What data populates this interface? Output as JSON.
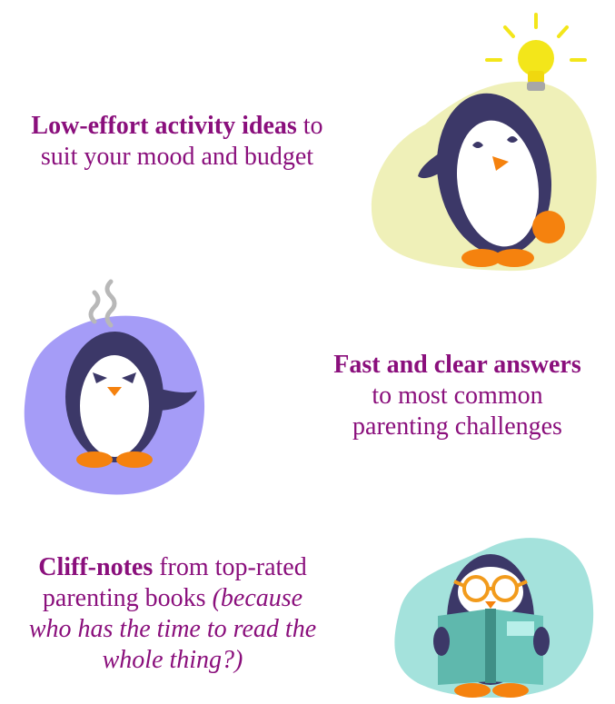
{
  "features": [
    {
      "bold": "Low-effort activity ideas",
      "line1_rest": " to",
      "line2": "suit your mood and budget",
      "illustration": "penguin-with-lightbulb-icon",
      "blob_color": "#eff0b8"
    },
    {
      "bold": "Fast and clear answers",
      "line2": "to most common",
      "line3": "parenting challenges",
      "illustration": "steaming-penguin-icon",
      "blob_color": "#a59cf7"
    },
    {
      "bold": "Cliff-notes",
      "line1_rest": " from top-rated",
      "line2_plain": "parenting books ",
      "line2_italic": "(because",
      "line3_italic": "who has the time to read the",
      "line4_italic": "whole thing?)",
      "illustration": "reading-penguin-icon",
      "blob_color": "#a4e2dc"
    }
  ],
  "colors": {
    "text": "#8a0f7c",
    "penguin_body": "#3c3868",
    "penguin_orange": "#f5820e",
    "bulb_yellow": "#f3e61a",
    "book_teal": "#5fb8ad",
    "glasses_orange": "#f29b1c"
  }
}
